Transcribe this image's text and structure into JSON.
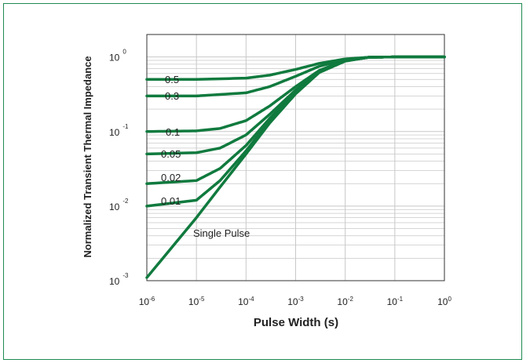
{
  "colors": {
    "frame": "#1e8a50",
    "curve": "#107a3e",
    "grid": "#c8c8c8",
    "axis": "#333333"
  },
  "chart_data": {
    "type": "line",
    "xlabel": "Pulse Width (s)",
    "ylabel": "Normalized Transient Thermal Impedance",
    "xscale": "log",
    "yscale": "log",
    "xlim": [
      1e-06,
      1
    ],
    "ylim": [
      0.001,
      2
    ],
    "grid": true,
    "x_ticks": [
      {
        "base": "10",
        "exp": "-6"
      },
      {
        "base": "10",
        "exp": "-5"
      },
      {
        "base": "10",
        "exp": "-4"
      },
      {
        "base": "10",
        "exp": "-3"
      },
      {
        "base": "10",
        "exp": "-2"
      },
      {
        "base": "10",
        "exp": "-1"
      },
      {
        "base": "10",
        "exp": "0"
      }
    ],
    "y_ticks": [
      {
        "base": "10",
        "exp": "0",
        "value": 1
      },
      {
        "base": "10",
        "exp": "-1",
        "value": 0.1
      },
      {
        "base": "10",
        "exp": "-2",
        "value": 0.01
      },
      {
        "base": "10",
        "exp": "-3",
        "value": 0.001
      }
    ],
    "series": [
      {
        "name": "0.5",
        "values_at_x": [
          [
            1e-06,
            0.5
          ],
          [
            1e-05,
            0.5
          ],
          [
            0.0001,
            0.52
          ],
          [
            0.0003,
            0.57
          ],
          [
            0.001,
            0.68
          ],
          [
            0.003,
            0.82
          ],
          [
            0.01,
            0.94
          ],
          [
            0.03,
            0.99
          ],
          [
            0.1,
            1.0
          ],
          [
            1,
            1.0
          ]
        ]
      },
      {
        "name": "0.3",
        "values_at_x": [
          [
            1e-06,
            0.3
          ],
          [
            1e-05,
            0.3
          ],
          [
            0.0001,
            0.33
          ],
          [
            0.0003,
            0.4
          ],
          [
            0.001,
            0.55
          ],
          [
            0.003,
            0.75
          ],
          [
            0.01,
            0.92
          ],
          [
            0.03,
            0.99
          ],
          [
            0.1,
            1.0
          ],
          [
            1,
            1.0
          ]
        ]
      },
      {
        "name": "0.1",
        "values_at_x": [
          [
            1e-06,
            0.1
          ],
          [
            1e-05,
            0.102
          ],
          [
            3e-05,
            0.11
          ],
          [
            0.0001,
            0.14
          ],
          [
            0.0003,
            0.22
          ],
          [
            0.001,
            0.4
          ],
          [
            0.003,
            0.66
          ],
          [
            0.01,
            0.9
          ],
          [
            0.03,
            0.99
          ],
          [
            0.1,
            1.0
          ],
          [
            1,
            1.0
          ]
        ]
      },
      {
        "name": "0.05",
        "values_at_x": [
          [
            1e-06,
            0.05
          ],
          [
            1e-05,
            0.052
          ],
          [
            3e-05,
            0.06
          ],
          [
            0.0001,
            0.09
          ],
          [
            0.0003,
            0.17
          ],
          [
            0.001,
            0.36
          ],
          [
            0.003,
            0.64
          ],
          [
            0.01,
            0.89
          ],
          [
            0.03,
            0.99
          ],
          [
            0.1,
            1.0
          ],
          [
            1,
            1.0
          ]
        ]
      },
      {
        "name": "0.02",
        "values_at_x": [
          [
            1e-06,
            0.02
          ],
          [
            1e-05,
            0.022
          ],
          [
            3e-05,
            0.032
          ],
          [
            0.0001,
            0.065
          ],
          [
            0.0003,
            0.15
          ],
          [
            0.001,
            0.34
          ],
          [
            0.003,
            0.63
          ],
          [
            0.01,
            0.89
          ],
          [
            0.03,
            0.99
          ],
          [
            0.1,
            1.0
          ],
          [
            1,
            1.0
          ]
        ]
      },
      {
        "name": "0.01",
        "values_at_x": [
          [
            1e-06,
            0.01
          ],
          [
            1e-05,
            0.012
          ],
          [
            3e-05,
            0.022
          ],
          [
            0.0001,
            0.055
          ],
          [
            0.0003,
            0.14
          ],
          [
            0.001,
            0.33
          ],
          [
            0.003,
            0.62
          ],
          [
            0.01,
            0.88
          ],
          [
            0.03,
            0.99
          ],
          [
            0.1,
            1.0
          ],
          [
            1,
            1.0
          ]
        ]
      },
      {
        "name": "Single Pulse",
        "values_at_x": [
          [
            1e-06,
            0.0011
          ],
          [
            1e-05,
            0.007
          ],
          [
            3e-05,
            0.018
          ],
          [
            0.0001,
            0.05
          ],
          [
            0.0003,
            0.13
          ],
          [
            0.001,
            0.32
          ],
          [
            0.003,
            0.62
          ],
          [
            0.01,
            0.88
          ],
          [
            0.03,
            0.99
          ],
          [
            0.1,
            1.0
          ],
          [
            1,
            1.0
          ]
        ]
      }
    ]
  }
}
